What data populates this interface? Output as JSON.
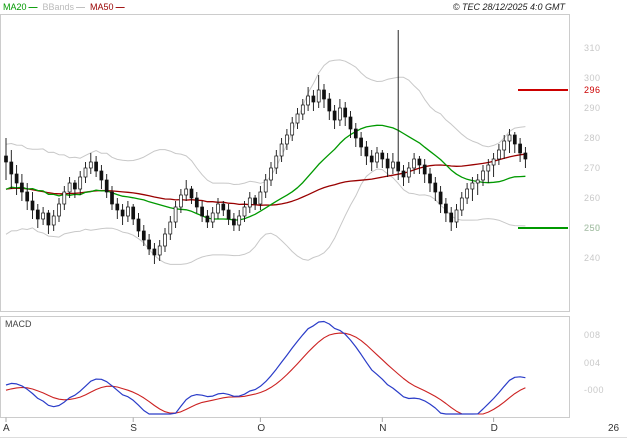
{
  "header": {
    "legend": [
      {
        "label": "MA20",
        "dash": "—",
        "color": "#009900"
      },
      {
        "label": "BBands",
        "dash": "—",
        "color": "#BBBBBB"
      },
      {
        "label": "MA50",
        "dash": "—",
        "color": "#990000"
      }
    ],
    "watermark": "© TEC 28/12/2025 4:0 GMT"
  },
  "price_axis": {
    "color": "#C8C8C8",
    "ticks": [
      {
        "label": "310",
        "value": 310
      },
      {
        "label": "300",
        "value": 300
      },
      {
        "label": "290",
        "value": 290
      },
      {
        "label": "280",
        "value": 280
      },
      {
        "label": "270",
        "value": 270
      },
      {
        "label": "260",
        "value": 260
      },
      {
        "label": "250",
        "value": 250
      },
      {
        "label": "240",
        "value": 240
      }
    ]
  },
  "levels": [
    {
      "label": "296",
      "value": 296,
      "color": "#CC0000",
      "role": "resistance"
    },
    {
      "label": "250",
      "value": 250,
      "color": "#009900",
      "role": "support"
    }
  ],
  "x_axis": {
    "month_ticks": [
      {
        "label": "A",
        "index": 0
      },
      {
        "label": "S",
        "index": 24
      },
      {
        "label": "O",
        "index": 48
      },
      {
        "label": "N",
        "index": 71
      },
      {
        "label": "D",
        "index": 92
      }
    ],
    "year_label": {
      "label": "26",
      "x": 608
    }
  },
  "macd_panel": {
    "title": "MACD",
    "line_color": "#2A3CC8",
    "signal_color": "#CC2222",
    "ticks": [
      {
        "label": "008",
        "value": 8
      },
      {
        "label": "004",
        "value": 4
      },
      {
        "label": "-000",
        "value": 0
      }
    ]
  },
  "chart_data": {
    "type": "candlestick",
    "title": "TEC daily price with MA20, MA50, Bollinger bands and MACD",
    "ylim": [
      222,
      326
    ],
    "series_colors": {
      "candles": "#111111",
      "ma20": "#009900",
      "ma50": "#990000",
      "bbands": "#C8C8C8"
    },
    "ma_short": 20,
    "ma_long": 50,
    "bollinger_window": 20,
    "bollinger_k": 2,
    "macd_params": {
      "fast": 12,
      "slow": 26,
      "signal": 9
    },
    "warmup_closes": [
      264,
      254,
      270,
      256,
      272,
      253,
      266,
      258,
      273,
      255,
      268,
      252,
      271,
      257,
      269,
      254,
      267,
      259,
      272,
      260
    ],
    "ohlc": [
      [
        274,
        280,
        266,
        272
      ],
      [
        272,
        276,
        263,
        268
      ],
      [
        268,
        271,
        261,
        265
      ],
      [
        265,
        268,
        259,
        262
      ],
      [
        262,
        265,
        256,
        259
      ],
      [
        259,
        262,
        253,
        256
      ],
      [
        256,
        258,
        250,
        253
      ],
      [
        253,
        257,
        251,
        255
      ],
      [
        255,
        256,
        248,
        251
      ],
      [
        251,
        256,
        249,
        254
      ],
      [
        254,
        260,
        252,
        258
      ],
      [
        258,
        264,
        256,
        262
      ],
      [
        262,
        267,
        260,
        265
      ],
      [
        265,
        266,
        260,
        263
      ],
      [
        263,
        269,
        261,
        267
      ],
      [
        267,
        272,
        265,
        270
      ],
      [
        270,
        275,
        268,
        272
      ],
      [
        272,
        274,
        267,
        269
      ],
      [
        269,
        271,
        263,
        266
      ],
      [
        266,
        268,
        260,
        262
      ],
      [
        262,
        264,
        256,
        258
      ],
      [
        258,
        260,
        253,
        256
      ],
      [
        256,
        258,
        251,
        254
      ],
      [
        254,
        259,
        252,
        257
      ],
      [
        257,
        258,
        251,
        253
      ],
      [
        253,
        255,
        247,
        249
      ],
      [
        249,
        251,
        244,
        246
      ],
      [
        246,
        248,
        241,
        243
      ],
      [
        243,
        245,
        238,
        241
      ],
      [
        241,
        246,
        239,
        244
      ],
      [
        244,
        250,
        242,
        248
      ],
      [
        248,
        254,
        246,
        252
      ],
      [
        252,
        259,
        250,
        257
      ],
      [
        257,
        263,
        255,
        261
      ],
      [
        261,
        266,
        259,
        263
      ],
      [
        263,
        264,
        258,
        260
      ],
      [
        260,
        262,
        255,
        257
      ],
      [
        257,
        259,
        252,
        254
      ],
      [
        254,
        256,
        250,
        252
      ],
      [
        252,
        257,
        250,
        255
      ],
      [
        255,
        260,
        253,
        258
      ],
      [
        258,
        259,
        254,
        256
      ],
      [
        256,
        258,
        251,
        253
      ],
      [
        253,
        255,
        249,
        251
      ],
      [
        251,
        256,
        249,
        254
      ],
      [
        254,
        259,
        252,
        257
      ],
      [
        257,
        262,
        255,
        260
      ],
      [
        260,
        261,
        256,
        258
      ],
      [
        258,
        264,
        256,
        262
      ],
      [
        262,
        268,
        260,
        266
      ],
      [
        266,
        272,
        264,
        270
      ],
      [
        270,
        276,
        268,
        274
      ],
      [
        274,
        280,
        272,
        278
      ],
      [
        278,
        283,
        276,
        281
      ],
      [
        281,
        287,
        279,
        285
      ],
      [
        285,
        290,
        283,
        288
      ],
      [
        288,
        293,
        286,
        291
      ],
      [
        291,
        297,
        289,
        294
      ],
      [
        294,
        296,
        289,
        292
      ],
      [
        292,
        301,
        290,
        296
      ],
      [
        296,
        298,
        290,
        293
      ],
      [
        293,
        295,
        286,
        289
      ],
      [
        289,
        291,
        283,
        286
      ],
      [
        286,
        293,
        284,
        290
      ],
      [
        290,
        292,
        284,
        287
      ],
      [
        287,
        289,
        280,
        283
      ],
      [
        283,
        285,
        277,
        280
      ],
      [
        280,
        282,
        274,
        277
      ],
      [
        277,
        279,
        271,
        274
      ],
      [
        274,
        276,
        269,
        272
      ],
      [
        272,
        277,
        270,
        275
      ],
      [
        275,
        276,
        270,
        273
      ],
      [
        273,
        275,
        267,
        270
      ],
      [
        270,
        275,
        268,
        272
      ],
      [
        272,
        316,
        266,
        269
      ],
      [
        269,
        271,
        264,
        267
      ],
      [
        267,
        272,
        265,
        270
      ],
      [
        270,
        275,
        268,
        273
      ],
      [
        273,
        274,
        268,
        271
      ],
      [
        271,
        273,
        265,
        268
      ],
      [
        268,
        270,
        262,
        265
      ],
      [
        265,
        267,
        259,
        262
      ],
      [
        262,
        264,
        255,
        258
      ],
      [
        258,
        260,
        252,
        255
      ],
      [
        255,
        257,
        249,
        252
      ],
      [
        252,
        258,
        250,
        256
      ],
      [
        256,
        262,
        254,
        260
      ],
      [
        260,
        265,
        258,
        263
      ],
      [
        263,
        267,
        259,
        265
      ],
      [
        265,
        268,
        261,
        266
      ],
      [
        266,
        271,
        264,
        269
      ],
      [
        269,
        273,
        265,
        271
      ],
      [
        271,
        275,
        267,
        273
      ],
      [
        273,
        278,
        271,
        276
      ],
      [
        276,
        281,
        273,
        279
      ],
      [
        279,
        283,
        275,
        281
      ],
      [
        281,
        282,
        275,
        278
      ],
      [
        278,
        280,
        272,
        275
      ],
      [
        275,
        277,
        270,
        273
      ]
    ]
  }
}
